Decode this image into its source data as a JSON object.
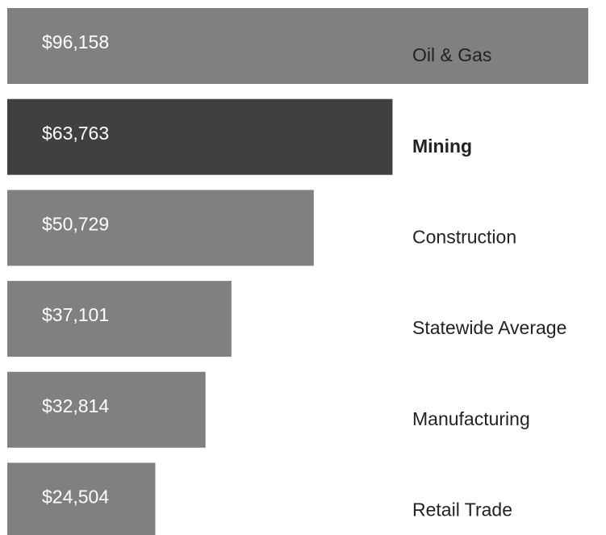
{
  "chart_data": {
    "type": "bar",
    "orientation": "horizontal",
    "categories": [
      "Oil & Gas",
      "Mining",
      "Construction",
      "Statewide Average",
      "Manufacturing",
      "Retail Trade"
    ],
    "values": [
      96158,
      63763,
      50729,
      37101,
      32814,
      24504
    ],
    "value_labels": [
      "$96,158",
      "$63,763",
      "$50,729",
      "$37,101",
      "$32,814",
      "$24,504"
    ],
    "colors": [
      "#808080",
      "#404040",
      "#808080",
      "#808080",
      "#808080",
      "#808080"
    ],
    "highlight": 1
  }
}
